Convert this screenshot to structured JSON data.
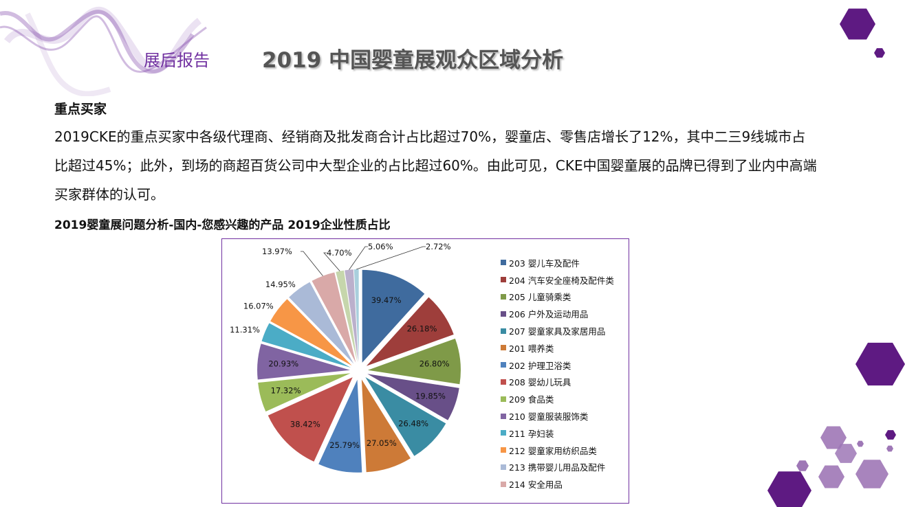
{
  "header": {
    "tag": "展后报告",
    "title": "2019 中国婴童展观众区域分析"
  },
  "section": {
    "heading": "重点买家",
    "paragraph": "2019CKE的重点买家中各级代理商、经销商及批发商合计占比超过70%，婴童店、零售店增长了12%，其中二三9线城市占比超过45%；此外，到场的商超百货公司中大型企业的占比超过60%。由此可见，CKE中国婴童展的品牌已得到了业内中高端买家群体的认可。",
    "chart_caption": "2019婴童展问题分析-国内-您感兴趣的产品 2019企业性质占比"
  },
  "chart_data": {
    "type": "pie",
    "exploded": true,
    "legend_position": "right",
    "slices": [
      {
        "label": "203 婴儿车及配件",
        "value": 39.47,
        "display": "39.47%",
        "color": "#3F6B9E"
      },
      {
        "label": "204 汽车安全座椅及配件类",
        "value": 26.18,
        "display": "26.18%",
        "color": "#9E3E3B"
      },
      {
        "label": "205 儿童骑乘类",
        "value": 26.8,
        "display": "26.80%",
        "color": "#7F9A48"
      },
      {
        "label": "206 户外及运动用品",
        "value": 19.85,
        "display": "19.85%",
        "color": "#684F88"
      },
      {
        "label": "207 婴童家具及家居用品",
        "value": 26.48,
        "display": "26.48%",
        "color": "#3A8CA3"
      },
      {
        "label": "201 喂养类",
        "value": 27.05,
        "display": "27.05%",
        "color": "#CD7A37"
      },
      {
        "label": "202 护理卫浴类",
        "value": 25.79,
        "display": "25.79%",
        "color": "#4F81BD"
      },
      {
        "label": "208 婴幼儿玩具",
        "value": 38.42,
        "display": "38.42%",
        "color": "#C0504D"
      },
      {
        "label": "209 食品类",
        "value": 17.32,
        "display": "17.32%",
        "color": "#9BBB59"
      },
      {
        "label": "210 婴童服装服饰类",
        "value": 20.93,
        "display": "20.93%",
        "color": "#8064A2"
      },
      {
        "label": "211 孕妇装",
        "value": 11.31,
        "display": "11.31%",
        "color": "#4BACC6"
      },
      {
        "label": "212 婴童家用纺织品类",
        "value": 16.07,
        "display": "16.07%",
        "color": "#F79646"
      },
      {
        "label": "213 携带婴儿用品及配件",
        "value": 14.95,
        "display": "14.95%",
        "color": "#AABAD7"
      },
      {
        "label": "214 安全用品",
        "value": 13.97,
        "display": "13.97%",
        "color": "#D9A9A8"
      },
      {
        "value": 4.7,
        "display": "4.70%",
        "color": "#C6D6AC"
      },
      {
        "value": 5.06,
        "display": "5.06%",
        "color": "#BBB0CC"
      },
      {
        "value": 2.72,
        "display": "2.72%",
        "color": "#A9CFDD"
      }
    ]
  },
  "colors": {
    "accent": "#7030A0",
    "hex_dark": "#5E1A82",
    "hex_light": "#9E77B6"
  }
}
